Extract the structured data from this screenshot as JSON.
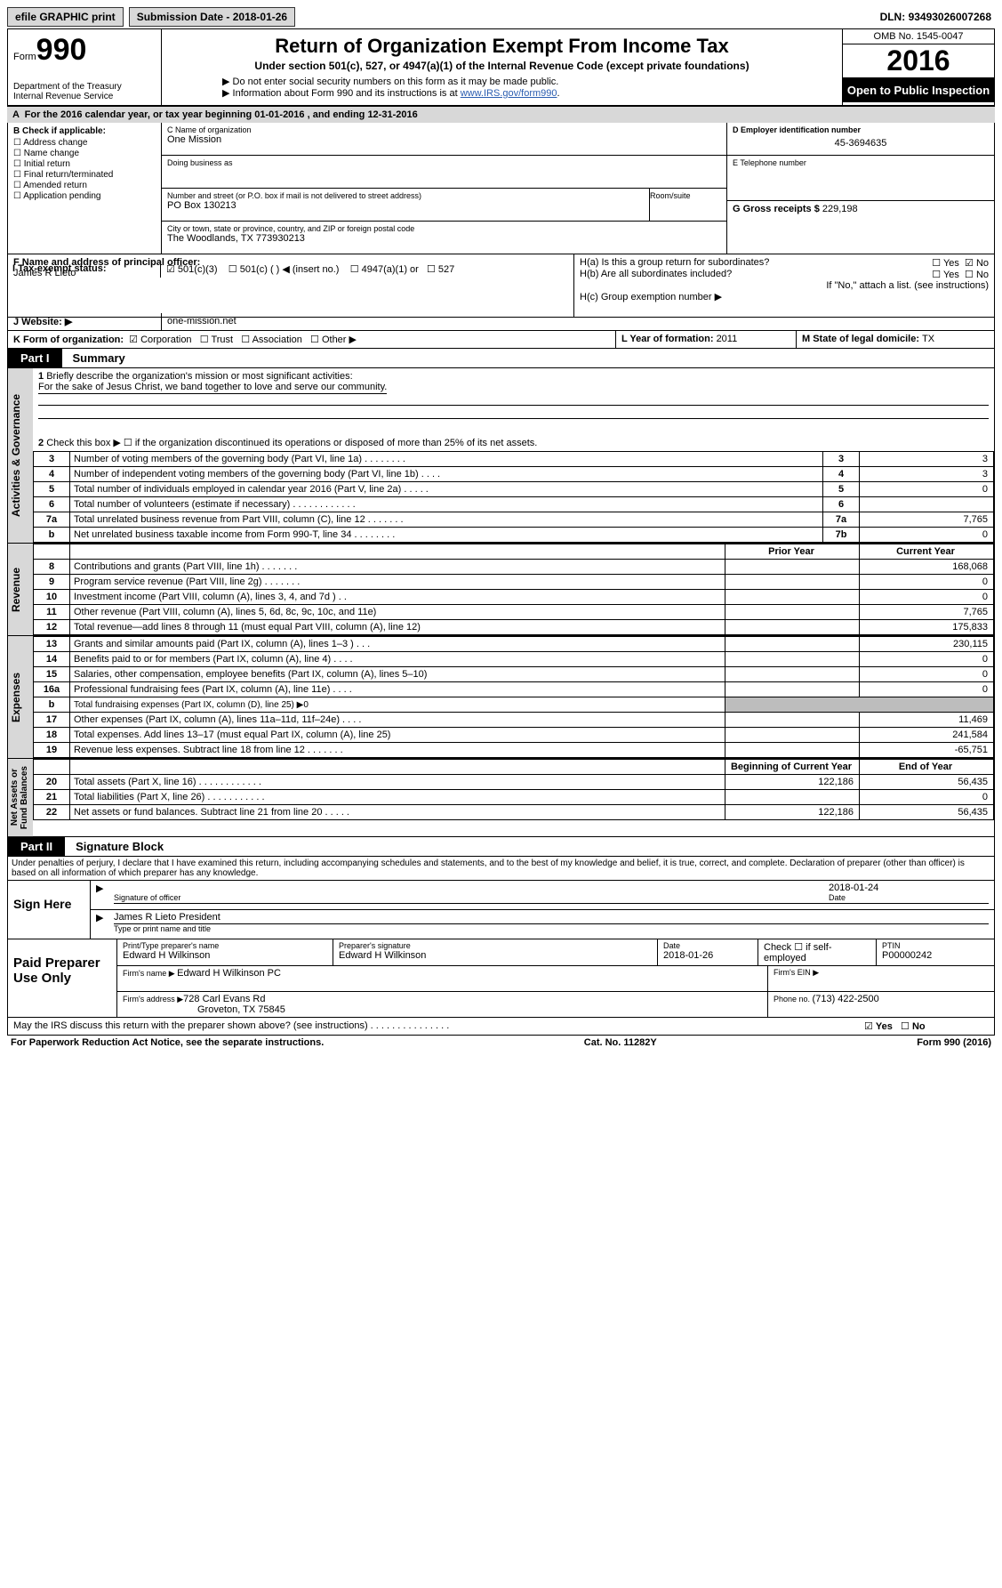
{
  "top": {
    "efile": "efile GRAPHIC print",
    "subdate_label": "Submission Date - ",
    "subdate": "2018-01-26",
    "dln_label": "DLN: ",
    "dln": "93493026007268"
  },
  "header": {
    "form_label": "Form",
    "form_num": "990",
    "dept1": "Department of the Treasury",
    "dept2": "Internal Revenue Service",
    "title": "Return of Organization Exempt From Income Tax",
    "sub": "Under section 501(c), 527, or 4947(a)(1) of the Internal Revenue Code (except private foundations)",
    "note1": "Do not enter social security numbers on this form as it may be made public.",
    "note2_pre": "Information about Form 990 and its instructions is at ",
    "note2_link": "www.IRS.gov/form990",
    "omb": "OMB No. 1545-0047",
    "year": "2016",
    "open": "Open to Public Inspection"
  },
  "A": {
    "text_pre": "For the 2016 calendar year, or tax year beginning ",
    "begin": "01-01-2016",
    "mid": " , and ending ",
    "end": "12-31-2016"
  },
  "B": {
    "label": "B Check if applicable:",
    "items": [
      "Address change",
      "Name change",
      "Initial return",
      "Final return/terminated",
      "Amended return",
      "Application pending"
    ]
  },
  "C": {
    "name_label": "C Name of organization",
    "name": "One Mission",
    "dba_label": "Doing business as",
    "street_label": "Number and street (or P.O. box if mail is not delivered to street address)",
    "room_label": "Room/suite",
    "street": "PO Box 130213",
    "city_label": "City or town, state or province, country, and ZIP or foreign postal code",
    "city": "The Woodlands, TX  773930213",
    "officer_label": "F Name and address of principal officer:",
    "officer": "James R Lieto"
  },
  "D": {
    "label": "D Employer identification number",
    "val": "45-3694635"
  },
  "E": {
    "label": "E Telephone number"
  },
  "G": {
    "label": "G Gross receipts $ ",
    "val": "229,198"
  },
  "H": {
    "a": "H(a) Is this a group return for subordinates?",
    "b": "H(b) Are all subordinates included?",
    "note": "If \"No,\" attach a list. (see instructions)",
    "c": "H(c) Group exemption number ▶"
  },
  "I": {
    "label": "I  Tax-exempt status:",
    "opts": [
      "501(c)(3)",
      "501(c) (  ) ◀ (insert no.)",
      "4947(a)(1) or",
      "527"
    ]
  },
  "J": {
    "label": "J  Website: ▶",
    "val": "one-mission.net"
  },
  "K": {
    "label": "K Form of organization:",
    "opts": [
      "Corporation",
      "Trust",
      "Association",
      "Other ▶"
    ]
  },
  "L": {
    "label": "L Year of formation: ",
    "val": "2011"
  },
  "M": {
    "label": "M State of legal domicile: ",
    "val": "TX"
  },
  "part1": {
    "label": "Part I",
    "title": "Summary",
    "l1": "Briefly describe the organization's mission or most significant activities:",
    "l1val": "For the sake of Jesus Christ, we band together to love and serve our community.",
    "l2": "Check this box ▶ ☐  if the organization discontinued its operations or disposed of more than 25% of its net assets.",
    "rows_gov": [
      {
        "n": "3",
        "t": "Number of voting members of the governing body (Part VI, line 1a) . . . . . . . .",
        "rn": "3",
        "v": "3"
      },
      {
        "n": "4",
        "t": "Number of independent voting members of the governing body (Part VI, line 1b) . . . .",
        "rn": "4",
        "v": "3"
      },
      {
        "n": "5",
        "t": "Total number of individuals employed in calendar year 2016 (Part V, line 2a) . . . . .",
        "rn": "5",
        "v": "0"
      },
      {
        "n": "6",
        "t": "Total number of volunteers (estimate if necessary) . . . . . . . . . . . .",
        "rn": "6",
        "v": ""
      },
      {
        "n": "7a",
        "t": "Total unrelated business revenue from Part VIII, column (C), line 12 . . . . . . .",
        "rn": "7a",
        "v": "7,765"
      },
      {
        "n": "b",
        "t": "Net unrelated business taxable income from Form 990-T, line 34 . . . . . . . .",
        "rn": "7b",
        "v": "0"
      }
    ],
    "py": "Prior Year",
    "cy": "Current Year",
    "rows_rev": [
      {
        "n": "8",
        "t": "Contributions and grants (Part VIII, line 1h) . . . . . . .",
        "py": "",
        "cy": "168,068"
      },
      {
        "n": "9",
        "t": "Program service revenue (Part VIII, line 2g) . . . . . . .",
        "py": "",
        "cy": "0"
      },
      {
        "n": "10",
        "t": "Investment income (Part VIII, column (A), lines 3, 4, and 7d ) . .",
        "py": "",
        "cy": "0"
      },
      {
        "n": "11",
        "t": "Other revenue (Part VIII, column (A), lines 5, 6d, 8c, 9c, 10c, and 11e)",
        "py": "",
        "cy": "7,765"
      },
      {
        "n": "12",
        "t": "Total revenue—add lines 8 through 11 (must equal Part VIII, column (A), line 12)",
        "py": "",
        "cy": "175,833"
      }
    ],
    "rows_exp": [
      {
        "n": "13",
        "t": "Grants and similar amounts paid (Part IX, column (A), lines 1–3 ) . . .",
        "py": "",
        "cy": "230,115"
      },
      {
        "n": "14",
        "t": "Benefits paid to or for members (Part IX, column (A), line 4) . . . .",
        "py": "",
        "cy": "0"
      },
      {
        "n": "15",
        "t": "Salaries, other compensation, employee benefits (Part IX, column (A), lines 5–10)",
        "py": "",
        "cy": "0"
      },
      {
        "n": "16a",
        "t": "Professional fundraising fees (Part IX, column (A), line 11e) . . . .",
        "py": "",
        "cy": "0"
      },
      {
        "n": "b",
        "t": "Total fundraising expenses (Part IX, column (D), line 25) ▶0",
        "shaded": true
      },
      {
        "n": "17",
        "t": "Other expenses (Part IX, column (A), lines 11a–11d, 11f–24e) . . . .",
        "py": "",
        "cy": "11,469"
      },
      {
        "n": "18",
        "t": "Total expenses. Add lines 13–17 (must equal Part IX, column (A), line 25)",
        "py": "",
        "cy": "241,584"
      },
      {
        "n": "19",
        "t": "Revenue less expenses. Subtract line 18 from line 12 . . . . . . .",
        "py": "",
        "cy": "-65,751"
      }
    ],
    "boy": "Beginning of Current Year",
    "eoy": "End of Year",
    "rows_net": [
      {
        "n": "20",
        "t": "Total assets (Part X, line 16) . . . . . . . . . . . .",
        "py": "122,186",
        "cy": "56,435"
      },
      {
        "n": "21",
        "t": "Total liabilities (Part X, line 26) . . . . . . . . . . .",
        "py": "",
        "cy": "0"
      },
      {
        "n": "22",
        "t": "Net assets or fund balances. Subtract line 21 from line 20 . . . . .",
        "py": "122,186",
        "cy": "56,435"
      }
    ]
  },
  "part2": {
    "label": "Part II",
    "title": "Signature Block",
    "perjury": "Under penalties of perjury, I declare that I have examined this return, including accompanying schedules and statements, and to the best of my knowledge and belief, it is true, correct, and complete. Declaration of preparer (other than officer) is based on all information of which preparer has any knowledge.",
    "sign_here": "Sign Here",
    "sig_officer": "Signature of officer",
    "date": "Date",
    "sig_date": "2018-01-24",
    "officer_name": "James R Lieto President",
    "type_name": "Type or print name and title",
    "paid": "Paid Preparer Use Only",
    "prep_name_l": "Print/Type preparer's name",
    "prep_name": "Edward H Wilkinson",
    "prep_sig_l": "Preparer's signature",
    "prep_sig": "Edward H Wilkinson",
    "prep_date_l": "Date",
    "prep_date": "2018-01-26",
    "check_se": "Check ☐ if self-employed",
    "ptin_l": "PTIN",
    "ptin": "P00000242",
    "firm_name_l": "Firm's name    ▶ ",
    "firm_name": "Edward H Wilkinson PC",
    "firm_ein_l": "Firm's EIN ▶",
    "firm_addr_l": "Firm's address ▶",
    "firm_addr1": "728 Carl Evans Rd",
    "firm_addr2": "Groveton, TX  75845",
    "phone_l": "Phone no. ",
    "phone": "(713) 422-2500",
    "discuss": "May the IRS discuss this return with the preparer shown above? (see instructions) . . . . . . . . . . . . . . ."
  },
  "footer": {
    "left": "For Paperwork Reduction Act Notice, see the separate instructions.",
    "mid": "Cat. No. 11282Y",
    "right": "Form 990 (2016)"
  },
  "yes": "Yes",
  "no": "No"
}
